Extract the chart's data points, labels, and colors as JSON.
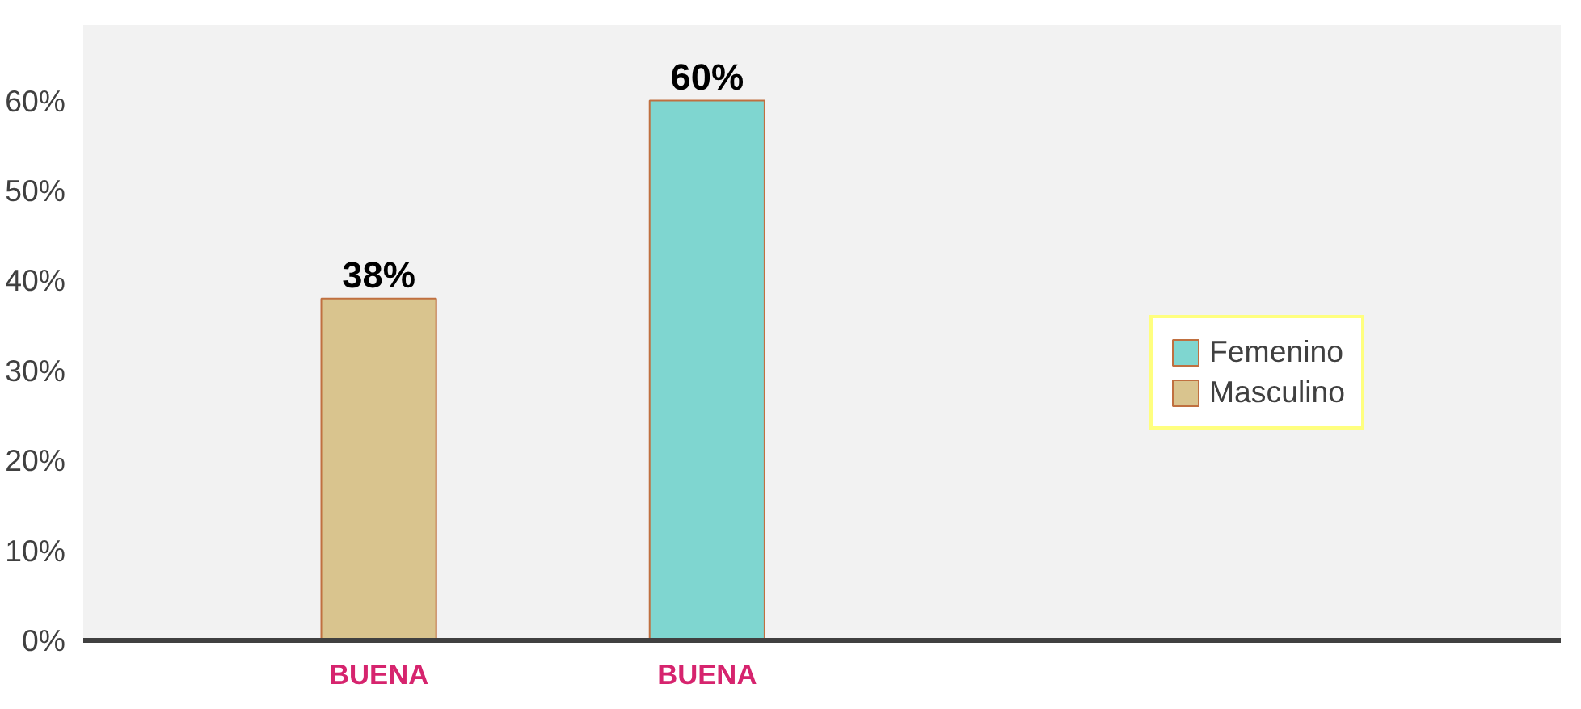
{
  "chart_data": {
    "type": "bar",
    "categories": [
      "BUENA",
      "BUENA"
    ],
    "series": [
      {
        "name": "Femenino",
        "color": "#7fd6d0",
        "values": [
          null,
          60
        ],
        "value_labels": [
          null,
          "60%"
        ]
      },
      {
        "name": "Masculino",
        "color": "#d9c48e",
        "values": [
          38,
          null
        ],
        "value_labels": [
          "38%",
          null
        ]
      }
    ],
    "ylim": [
      0,
      60
    ],
    "yticks": [
      {
        "value": 0,
        "label": "0%"
      },
      {
        "value": 10,
        "label": "10%"
      },
      {
        "value": 20,
        "label": "20%"
      },
      {
        "value": 30,
        "label": "30%"
      },
      {
        "value": 40,
        "label": "40%"
      },
      {
        "value": 50,
        "label": "50%"
      },
      {
        "value": 60,
        "label": "60%"
      }
    ],
    "legend": "right"
  }
}
